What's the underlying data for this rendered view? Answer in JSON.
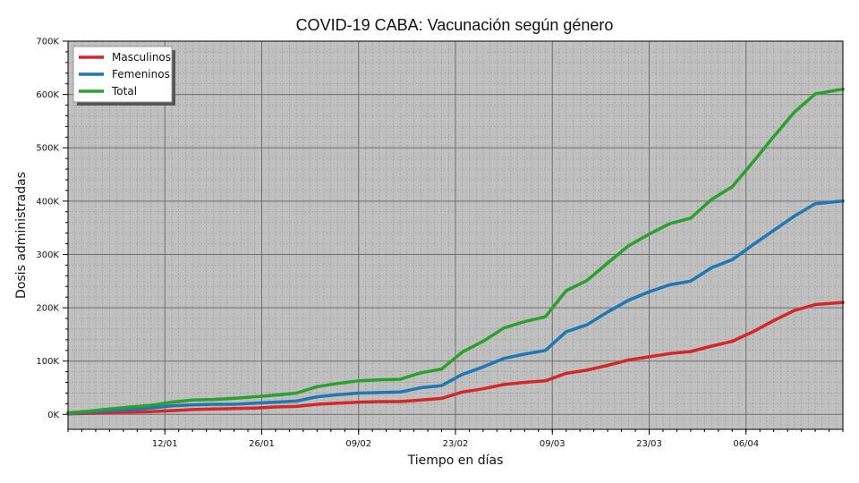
{
  "chart_data": {
    "type": "line",
    "title": "COVID-19 CABA: Vacunación según género",
    "xlabel": "Tiempo en días",
    "ylabel": "Dosis administradas",
    "xlim": [
      "2021-12-29",
      "2022-04-20"
    ],
    "ylim": [
      -28000,
      700000
    ],
    "x_ticks": [
      {
        "date": "2022-01-12",
        "label": "12/01"
      },
      {
        "date": "2022-01-26",
        "label": "26/01"
      },
      {
        "date": "2022-02-09",
        "label": "09/02"
      },
      {
        "date": "2022-02-23",
        "label": "23/02"
      },
      {
        "date": "2022-03-09",
        "label": "09/03"
      },
      {
        "date": "2022-03-23",
        "label": "23/03"
      },
      {
        "date": "2022-04-06",
        "label": "06/04"
      }
    ],
    "y_ticks": [
      {
        "value": 0,
        "label": "0K"
      },
      {
        "value": 100000,
        "label": "100K"
      },
      {
        "value": 200000,
        "label": "200K"
      },
      {
        "value": 300000,
        "label": "300K"
      },
      {
        "value": 400000,
        "label": "400K"
      },
      {
        "value": 500000,
        "label": "500K"
      },
      {
        "value": 600000,
        "label": "600K"
      },
      {
        "value": 700000,
        "label": "700K"
      }
    ],
    "grid": true,
    "legend_position": "top-left",
    "x": [
      "2021-12-29",
      "2022-01-01",
      "2022-01-04",
      "2022-01-07",
      "2022-01-10",
      "2022-01-13",
      "2022-01-16",
      "2022-01-19",
      "2022-01-22",
      "2022-01-25",
      "2022-01-28",
      "2022-01-31",
      "2022-02-03",
      "2022-02-06",
      "2022-02-09",
      "2022-02-12",
      "2022-02-15",
      "2022-02-18",
      "2022-02-21",
      "2022-02-24",
      "2022-02-27",
      "2022-03-02",
      "2022-03-05",
      "2022-03-08",
      "2022-03-11",
      "2022-03-14",
      "2022-03-17",
      "2022-03-20",
      "2022-03-23",
      "2022-03-26",
      "2022-03-29",
      "2022-04-01",
      "2022-04-04",
      "2022-04-07",
      "2022-04-10",
      "2022-04-13",
      "2022-04-16",
      "2022-04-20"
    ],
    "series": [
      {
        "name": "Masculinos",
        "color": "#d62728",
        "values": [
          1000,
          2000,
          3000,
          4000,
          5000,
          7000,
          9000,
          10000,
          11000,
          12000,
          14000,
          15000,
          19000,
          21000,
          23000,
          24000,
          24000,
          27000,
          30000,
          42000,
          48000,
          56000,
          60000,
          63000,
          77000,
          83000,
          92000,
          102000,
          108000,
          114000,
          118000,
          128000,
          137000,
          155000,
          176000,
          195000,
          206000,
          210000
        ]
      },
      {
        "name": "Femeninos",
        "color": "#1f77b4",
        "values": [
          2000,
          4000,
          7000,
          9000,
          12000,
          16000,
          18000,
          19000,
          19000,
          21000,
          23000,
          25000,
          33000,
          37000,
          40000,
          41000,
          42000,
          50000,
          54000,
          75000,
          89000,
          105000,
          113000,
          120000,
          155000,
          168000,
          192000,
          214000,
          230000,
          243000,
          250000,
          275000,
          290000,
          318000,
          345000,
          372000,
          395000,
          400000
        ]
      },
      {
        "name": "Total",
        "color": "#2ca02c",
        "values": [
          3000,
          6000,
          10000,
          14000,
          17000,
          23000,
          27000,
          28000,
          30000,
          33000,
          36000,
          40000,
          52000,
          58000,
          63000,
          65000,
          66000,
          78000,
          85000,
          117000,
          137000,
          162000,
          174000,
          183000,
          232000,
          251000,
          284000,
          316000,
          338000,
          358000,
          368000,
          403000,
          427000,
          473000,
          521000,
          567000,
          601000,
          610000
        ]
      }
    ]
  }
}
